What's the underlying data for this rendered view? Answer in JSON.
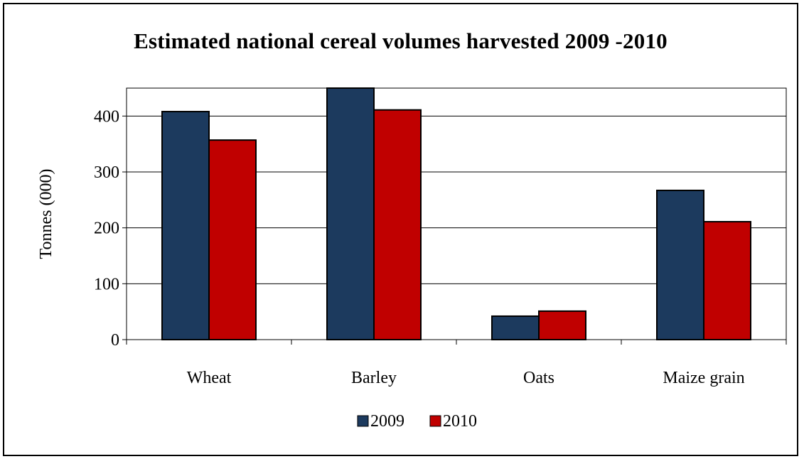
{
  "chart_data": {
    "type": "bar",
    "title": "Estimated national cereal volumes harvested 2009 -2010",
    "xlabel": "",
    "ylabel": "Tonnes (000)",
    "categories": [
      "Wheat",
      "Barley",
      "Oats",
      "Maize grain"
    ],
    "series": [
      {
        "name": "2009",
        "values": [
          408,
          450,
          42,
          267
        ],
        "color": "#1c3a5e"
      },
      {
        "name": "2010",
        "values": [
          357,
          411,
          51,
          211
        ],
        "color": "#c00000"
      }
    ],
    "ylim": [
      0,
      450
    ],
    "yticks": [
      0,
      100,
      200,
      300,
      400
    ],
    "grid": true,
    "legend_position": "bottom"
  }
}
